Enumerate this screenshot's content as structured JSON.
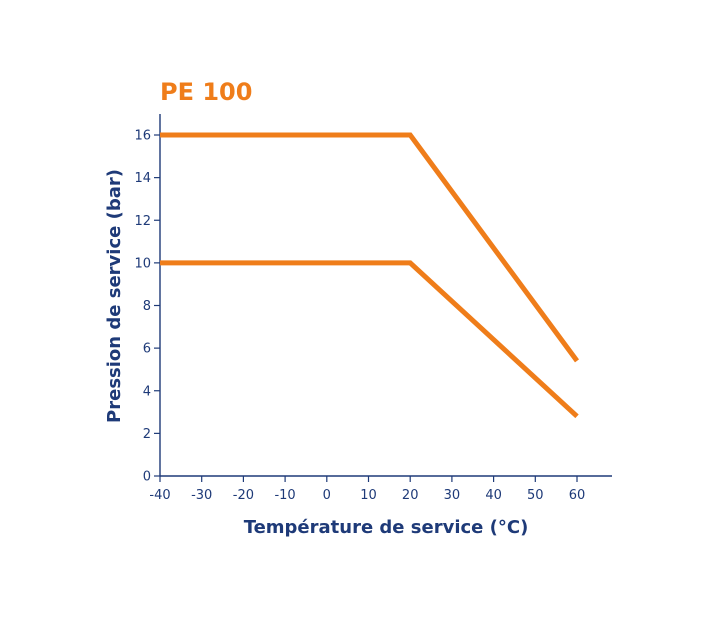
{
  "chart_data": {
    "type": "line",
    "title": "PE 100",
    "xlabel": "Température de service (°C)",
    "ylabel": "Pression de service (bar)",
    "xlim": [
      -40,
      60
    ],
    "ylim": [
      0,
      16
    ],
    "x_ticks": [
      "-40",
      "-30",
      "-20",
      "-10",
      "0",
      "10",
      "20",
      "30",
      "40",
      "50",
      "60"
    ],
    "y_ticks": [
      "0",
      "2",
      "4",
      "6",
      "8",
      "10",
      "12",
      "14",
      "16"
    ],
    "series": [
      {
        "x": [
          -40,
          20,
          60
        ],
        "y": [
          16,
          16,
          5.4
        ]
      },
      {
        "x": [
          -40,
          20,
          60
        ],
        "y": [
          10,
          10,
          2.8
        ]
      }
    ],
    "grid": false,
    "colors": {
      "series": "#ef7d1a",
      "axis": "#1e3a78"
    }
  }
}
